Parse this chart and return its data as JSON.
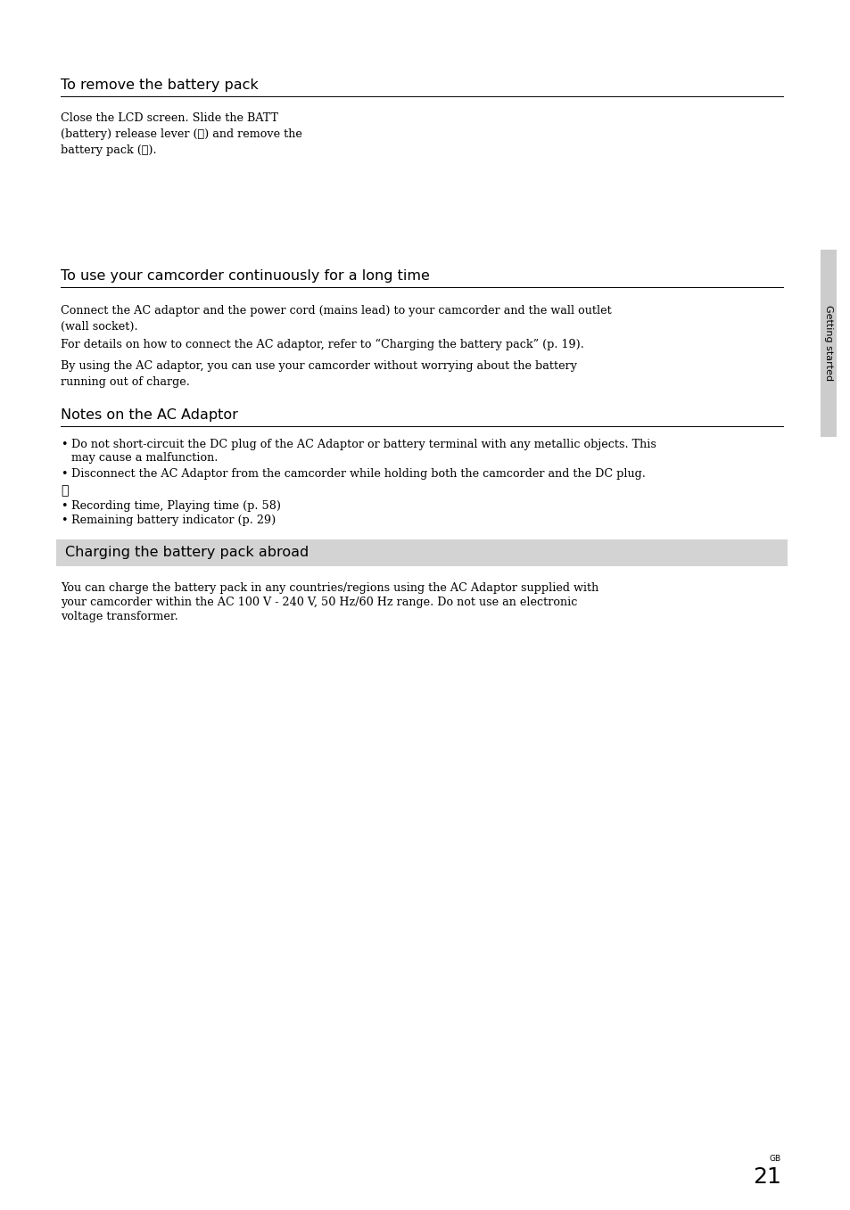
{
  "bg_color": "#ffffff",
  "page_number": "21",
  "page_number_label": "GB",
  "sidebar_text": "Getting started",
  "sidebar_bg": "#cccccc",
  "section1_title": "To remove the battery pack",
  "section1_body1": "Close the LCD screen. Slide the BATT\n(battery) release lever (①) and remove the\nbattery pack (②).",
  "section2_title": "To use your camcorder continuously for a long time",
  "section2_body1": "Connect the AC adaptor and the power cord (mains lead) to your camcorder and the wall outlet\n(wall socket).",
  "section2_body2": "For details on how to connect the AC adaptor, refer to “Charging the battery pack” (p. 19).",
  "section2_body3": "By using the AC adaptor, you can use your camcorder without worrying about the battery\nrunning out of charge.",
  "section3_title": "Notes on the AC Adaptor",
  "section3_bullet1_line1": "Do not short-circuit the DC plug of the AC Adaptor or battery terminal with any metallic objects. This",
  "section3_bullet1_line2": "may cause a malfunction.",
  "section3_bullet2": "Disconnect the AC Adaptor from the camcorder while holding both the camcorder and the DC plug.",
  "section3_ref_icon": "⻟",
  "section3_bullet3": "Recording time, Playing time (p. 58)",
  "section3_bullet4": "Remaining battery indicator (p. 29)",
  "section4_title": "Charging the battery pack abroad",
  "section4_bg": "#d3d3d3",
  "section4_body1": "You can charge the battery pack in any countries/regions using the AC Adaptor supplied with",
  "section4_body2": "your camcorder within the AC 100 V - 240 V, 50 Hz/60 Hz range. Do not use an electronic",
  "section4_body3": "voltage transformer.",
  "title_fontsize": 11.5,
  "body_fontsize": 9.2,
  "sidebar_fontsize": 8.0,
  "page_num_fontsize": 18,
  "page_label_fontsize": 6.5
}
